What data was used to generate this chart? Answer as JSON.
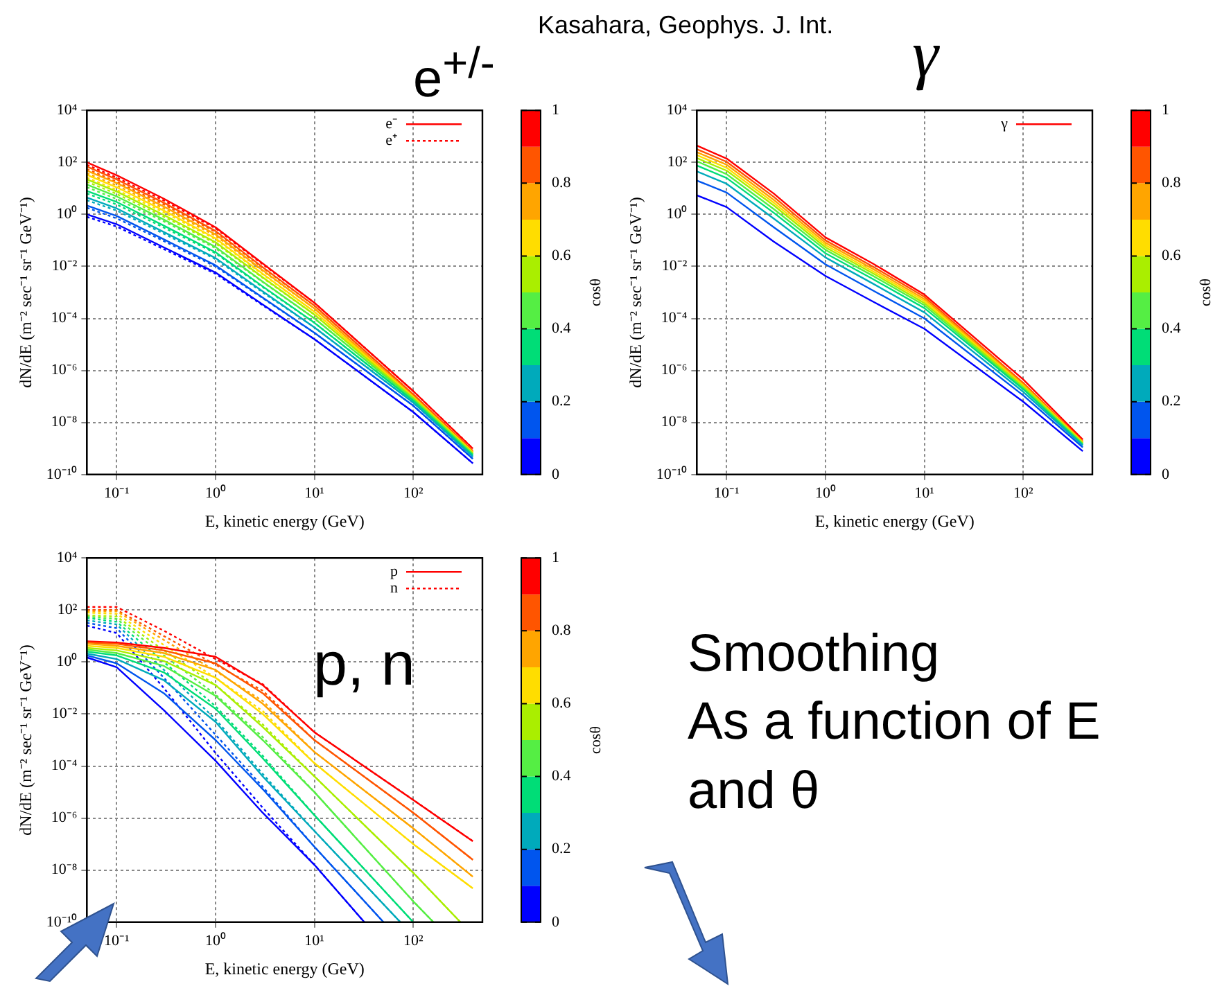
{
  "chart_data": [
    {
      "type": "line",
      "title": "e$^{+/-}$",
      "xlabel": "E, kinetic energy (GeV)",
      "ylabel": "dN/dE (m⁻² sec⁻¹ sr⁻¹ GeV⁻¹)",
      "clabel": "cosθ",
      "clim": [
        0,
        1
      ],
      "cticks": [
        0,
        0.2,
        0.4,
        0.6,
        0.8,
        1
      ],
      "log": "xy",
      "grid": true,
      "legend": "top right",
      "marker": "none",
      "xlim": [
        0.05,
        500
      ],
      "ylim": [
        1e-10,
        10000
      ],
      "xticks": [
        {
          "value": 0.1,
          "label": "10⁻¹"
        },
        {
          "value": 1,
          "label": "10⁰"
        },
        {
          "value": 10,
          "label": "10¹"
        },
        {
          "value": 100,
          "label": "10²"
        }
      ],
      "yticks": [
        {
          "value": 1e-10,
          "label": "10⁻¹⁰"
        },
        {
          "value": 1e-08,
          "label": "10⁻⁸"
        },
        {
          "value": 1e-06,
          "label": "10⁻⁶"
        },
        {
          "value": 0.0001,
          "label": "10⁻⁴"
        },
        {
          "value": 0.01,
          "label": "10⁻²"
        },
        {
          "value": 1,
          "label": "10⁰"
        },
        {
          "value": 100,
          "label": "10²"
        },
        {
          "value": 10000,
          "label": "10⁴"
        }
      ],
      "x": [
        0.05,
        0.1,
        0.3,
        1,
        3,
        10,
        100,
        400
      ],
      "series": [
        {
          "color": "#0000ff",
          "line_style": "solid",
          "values": [
            1,
            0.42,
            0.054,
            0.0058,
            0.00034,
            1.6e-05,
            2.5e-08,
            2.7e-10
          ]
        },
        {
          "color": "#0055ee",
          "line_style": "solid",
          "values": [
            2.2,
            0.87,
            0.11,
            0.011,
            0.00063,
            2.8e-05,
            4.4e-08,
            4e-10
          ]
        },
        {
          "color": "#00aabb",
          "line_style": "solid",
          "values": [
            4.4,
            1.7,
            0.21,
            0.021,
            0.0011,
            4.5e-05,
            5.8e-08,
            4.9e-10
          ]
        },
        {
          "color": "#00dd77",
          "line_style": "solid",
          "values": [
            7.9,
            3,
            0.37,
            0.035,
            0.0017,
            6.8e-05,
            6.9e-08,
            5.5e-10
          ]
        },
        {
          "color": "#55ee44",
          "line_style": "solid",
          "values": [
            14,
            4.9,
            0.63,
            0.056,
            0.0026,
            0.0001,
            7.9e-08,
            6e-10
          ]
        },
        {
          "color": "#aaee00",
          "line_style": "solid",
          "values": [
            22,
            7.6,
            0.95,
            0.085,
            0.0038,
            0.00014,
            8.7e-08,
            6.6e-10
          ]
        },
        {
          "color": "#ffdd00",
          "line_style": "solid",
          "values": [
            33,
            11,
            1.4,
            0.12,
            0.0052,
            0.00018,
            9.5e-08,
            7.1e-10
          ]
        },
        {
          "color": "#ffa500",
          "line_style": "solid",
          "values": [
            48,
            16,
            2,
            0.17,
            0.0071,
            0.00024,
            1e-07,
            7.4e-10
          ]
        },
        {
          "color": "#ff5500",
          "line_style": "solid",
          "values": [
            69,
            22,
            2.8,
            0.23,
            0.0093,
            0.00031,
            1.2e-07,
            8.1e-10
          ]
        },
        {
          "name": "e⁻",
          "color": "#ff0000",
          "line_style": "solid",
          "values": [
            100,
            32,
            4,
            0.32,
            0.013,
            0.0004,
            1.6e-07,
            1e-09
          ]
        },
        {
          "color": "#0000ff",
          "line_style": "dotted",
          "values": [
            0.8,
            0.34,
            0.046,
            0.0052,
            0.00032,
            1.6e-05,
            2.5e-08,
            2.7e-10
          ]
        },
        {
          "color": "#0055ee",
          "line_style": "dotted",
          "values": [
            1.8,
            0.7,
            0.094,
            0.0099,
            0.0006,
            2.8e-05,
            4.4e-08,
            4e-10
          ]
        },
        {
          "color": "#00aabb",
          "line_style": "dotted",
          "values": [
            3.5,
            1.4,
            0.18,
            0.019,
            0.001,
            4.5e-05,
            5.8e-08,
            4.9e-10
          ]
        },
        {
          "color": "#00dd77",
          "line_style": "dotted",
          "values": [
            6.3,
            2.4,
            0.31,
            0.032,
            0.0016,
            6.8e-05,
            6.9e-08,
            5.5e-10
          ]
        },
        {
          "color": "#55ee44",
          "line_style": "dotted",
          "values": [
            11,
            3.9,
            0.54,
            0.05,
            0.0025,
            0.0001,
            7.9e-08,
            6e-10
          ]
        },
        {
          "color": "#aaee00",
          "line_style": "dotted",
          "values": [
            18,
            6.1,
            0.81,
            0.077,
            0.0036,
            0.00014,
            8.7e-08,
            6.6e-10
          ]
        },
        {
          "color": "#ffdd00",
          "line_style": "dotted",
          "values": [
            26,
            8.8,
            1.2,
            0.11,
            0.0049,
            0.00018,
            9.5e-08,
            7.1e-10
          ]
        },
        {
          "color": "#ffa500",
          "line_style": "dotted",
          "values": [
            38,
            13,
            1.7,
            0.15,
            0.0067,
            0.00024,
            1e-07,
            7.4e-10
          ]
        },
        {
          "color": "#ff5500",
          "line_style": "dotted",
          "values": [
            55,
            18,
            2.4,
            0.21,
            0.0088,
            0.00031,
            1.2e-07,
            8.1e-10
          ]
        },
        {
          "name": "e⁺",
          "color": "#ff0000",
          "line_style": "dotted",
          "values": [
            80,
            26,
            3.4,
            0.29,
            0.012,
            0.0004,
            1.6e-07,
            1e-09
          ]
        }
      ]
    },
    {
      "type": "line",
      "title": "γ",
      "xlabel": "E, kinetic energy (GeV)",
      "ylabel": "dN/dE (m⁻² sec⁻¹ sr⁻¹ GeV⁻¹)",
      "clabel": "cosθ",
      "clim": [
        0,
        1
      ],
      "cticks": [
        0,
        0.2,
        0.4,
        0.6,
        0.8,
        1
      ],
      "log": "xy",
      "grid": true,
      "legend": "top right",
      "marker": "none",
      "xlim": [
        0.05,
        500
      ],
      "ylim": [
        1e-10,
        10000
      ],
      "xticks": [
        {
          "value": 0.1,
          "label": "10⁻¹"
        },
        {
          "value": 1,
          "label": "10⁰"
        },
        {
          "value": 10,
          "label": "10¹"
        },
        {
          "value": 100,
          "label": "10²"
        }
      ],
      "yticks": [
        {
          "value": 1e-10,
          "label": "10⁻¹⁰"
        },
        {
          "value": 1e-08,
          "label": "10⁻⁸"
        },
        {
          "value": 1e-06,
          "label": "10⁻⁶"
        },
        {
          "value": 0.0001,
          "label": "10⁻⁴"
        },
        {
          "value": 0.01,
          "label": "10⁻²"
        },
        {
          "value": 1,
          "label": "10⁰"
        },
        {
          "value": 100,
          "label": "10²"
        },
        {
          "value": 10000,
          "label": "10⁴"
        }
      ],
      "x": [
        0.05,
        0.1,
        0.3,
        1,
        3,
        10,
        100,
        400
      ],
      "series": [
        {
          "color": "#0000ff",
          "line_style": "solid",
          "values": [
            5.4,
            1.9,
            0.089,
            0.0043,
            0.00045,
            4e-05,
            6.3e-08,
            7.9e-10
          ]
        },
        {
          "color": "#0055ee",
          "line_style": "solid",
          "values": [
            20,
            6.9,
            0.32,
            0.012,
            0.0012,
            0.0001,
            1.1e-07,
            1.1e-09
          ]
        },
        {
          "color": "#00aabb",
          "line_style": "solid",
          "values": [
            45,
            15,
            0.69,
            0.022,
            0.0022,
            0.00017,
            1.5e-07,
            1.3e-09
          ]
        },
        {
          "color": "#00dd77",
          "line_style": "solid",
          "values": [
            76,
            25,
            1.15,
            0.032,
            0.0033,
            0.00025,
            1.9e-07,
            1.4e-09
          ]
        },
        {
          "color": "#55ee44",
          "line_style": "solid",
          "values": [
            110,
            35,
            1.6,
            0.043,
            0.0044,
            0.00032,
            2.1e-07,
            1.5e-09
          ]
        },
        {
          "color": "#aaee00",
          "line_style": "solid",
          "values": [
            145,
            48,
            2.2,
            0.054,
            0.0055,
            0.00039,
            2.4e-07,
            1.6e-09
          ]
        },
        {
          "color": "#ffdd00",
          "line_style": "solid",
          "values": [
            190,
            62,
            2.8,
            0.066,
            0.0066,
            0.00047,
            2.6e-07,
            1.7e-09
          ]
        },
        {
          "color": "#ffa500",
          "line_style": "solid",
          "values": [
            245,
            81,
            3.6,
            0.081,
            0.0081,
            0.00056,
            2.9e-07,
            1.8e-09
          ]
        },
        {
          "color": "#ff5500",
          "line_style": "solid",
          "values": [
            320,
            105,
            4.7,
            0.1,
            0.01,
            0.00068,
            3.3e-07,
            1.9e-09
          ]
        },
        {
          "name": "γ",
          "color": "#ff0000",
          "line_style": "solid",
          "values": [
            440,
            140,
            6.3,
            0.13,
            0.013,
            0.00083,
            4.5e-07,
            2.2e-09
          ]
        }
      ]
    },
    {
      "type": "line",
      "title": "p, n",
      "xlabel": "E, kinetic energy (GeV)",
      "ylabel": "dN/dE (m⁻² sec⁻¹ sr⁻¹ GeV⁻¹)",
      "clabel": "cosθ",
      "clim": [
        0,
        1
      ],
      "cticks": [
        0,
        0.2,
        0.4,
        0.6,
        0.8,
        1
      ],
      "log": "xy",
      "grid": true,
      "legend": "top right",
      "marker": "none",
      "xlim": [
        0.05,
        500
      ],
      "ylim": [
        1e-10,
        10000
      ],
      "xticks": [
        {
          "value": 0.1,
          "label": "10⁻¹"
        },
        {
          "value": 1,
          "label": "10⁰"
        },
        {
          "value": 10,
          "label": "10¹"
        },
        {
          "value": 100,
          "label": "10²"
        }
      ],
      "yticks": [
        {
          "value": 1e-10,
          "label": "10⁻¹⁰"
        },
        {
          "value": 1e-08,
          "label": "10⁻⁸"
        },
        {
          "value": 1e-06,
          "label": "10⁻⁶"
        },
        {
          "value": 0.0001,
          "label": "10⁻⁴"
        },
        {
          "value": 0.01,
          "label": "10⁻²"
        },
        {
          "value": 1,
          "label": "10⁰"
        },
        {
          "value": 100,
          "label": "10²"
        },
        {
          "value": 10000,
          "label": "10⁴"
        }
      ],
      "x": [
        0.05,
        0.1,
        0.3,
        1,
        3,
        10,
        100,
        400
      ],
      "series": [
        {
          "color": "#0000ff",
          "line_style": "solid",
          "x": [
            0.05,
            0.1,
            0.3,
            1,
            3,
            10,
            32
          ],
          "values": [
            1.5,
            0.63,
            0.014,
            0.00016,
            1.6e-06,
            1.6e-08,
            1e-10
          ]
        },
        {
          "color": "#0055ee",
          "line_style": "solid",
          "x": [
            0.05,
            0.1,
            0.3,
            1,
            3,
            10,
            50
          ],
          "values": [
            1.8,
            0.89,
            0.063,
            0.001,
            1.3e-05,
            7.9e-08,
            1e-10
          ]
        },
        {
          "color": "#00aabb",
          "line_style": "solid",
          "x": [
            0.05,
            0.1,
            0.3,
            1,
            3,
            10,
            74
          ],
          "values": [
            2.1,
            1.3,
            0.2,
            0.005,
            4e-05,
            3.2e-07,
            1e-10
          ]
        },
        {
          "color": "#00dd77",
          "line_style": "solid",
          "x": [
            0.05,
            0.1,
            0.3,
            1,
            3,
            10,
            100
          ],
          "values": [
            2.5,
            1.8,
            0.4,
            0.016,
            0.0002,
            1.3e-06,
            1e-10
          ]
        },
        {
          "color": "#55ee44",
          "line_style": "solid",
          "x": [
            0.05,
            0.1,
            0.3,
            1,
            3,
            10,
            100,
            160
          ],
          "values": [
            3,
            2.2,
            0.71,
            0.05,
            0.001,
            1e-05,
            6.3e-10,
            1e-10
          ]
        },
        {
          "color": "#aaee00",
          "line_style": "solid",
          "x": [
            0.05,
            0.1,
            0.3,
            1,
            3,
            10,
            100,
            300
          ],
          "values": [
            3.5,
            2.8,
            1.1,
            0.13,
            0.0032,
            4e-05,
            7.9e-09,
            1e-10
          ]
        },
        {
          "color": "#ffdd00",
          "line_style": "solid",
          "values": [
            4.2,
            3.5,
            1.6,
            0.25,
            0.01,
            0.00013,
            1e-07,
            2e-09
          ]
        },
        {
          "color": "#ffa500",
          "line_style": "solid",
          "values": [
            5,
            4.2,
            2.2,
            0.5,
            0.025,
            0.00035,
            4e-07,
            5.6e-09
          ]
        },
        {
          "color": "#ff5500",
          "line_style": "solid",
          "values": [
            5.6,
            5,
            2.8,
            0.89,
            0.063,
            0.001,
            1.6e-06,
            2.5e-08
          ]
        },
        {
          "name": "p",
          "color": "#ff0000",
          "line_style": "solid",
          "values": [
            6.3,
            5.6,
            3.5,
            1.6,
            0.13,
            0.002,
            5e-06,
            1.3e-07
          ]
        },
        {
          "color": "#0000ff",
          "line_style": "dotted",
          "x": [
            0.05,
            0.1,
            0.3,
            1,
            3,
            10,
            32
          ],
          "values": [
            25,
            13,
            0.1,
            0.00032,
            2.5e-06,
            1.6e-08,
            1e-10
          ]
        },
        {
          "color": "#0055ee",
          "line_style": "dotted",
          "x": [
            0.05,
            0.1,
            0.3,
            1,
            3,
            10,
            50
          ],
          "values": [
            32,
            20,
            0.25,
            0.0016,
            1.6e-05,
            7.9e-08,
            1e-10
          ]
        },
        {
          "color": "#00aabb",
          "line_style": "dotted",
          "x": [
            0.05,
            0.1,
            0.3,
            1,
            3,
            10,
            74
          ],
          "values": [
            40,
            28,
            0.5,
            0.0063,
            5e-05,
            3.2e-07,
            1e-10
          ]
        },
        {
          "color": "#00dd77",
          "line_style": "dotted",
          "x": [
            0.05,
            0.1,
            0.3,
            1,
            3,
            10,
            100
          ],
          "values": [
            50,
            35,
            1,
            0.02,
            0.00025,
            1.3e-06,
            1e-10
          ]
        },
        {
          "color": "#55ee44",
          "line_style": "dotted",
          "x": [
            0.05,
            0.1,
            0.3,
            1,
            3,
            10,
            100,
            160
          ],
          "values": [
            56,
            45,
            1.8,
            0.056,
            0.0013,
            1e-05,
            6.3e-10,
            1e-10
          ]
        },
        {
          "color": "#aaee00",
          "line_style": "dotted",
          "x": [
            0.05,
            0.1,
            0.3,
            1,
            3,
            10,
            100,
            300
          ],
          "values": [
            63,
            56,
            2.8,
            0.13,
            0.004,
            4e-05,
            7.9e-09,
            1e-10
          ]
        },
        {
          "color": "#ffdd00",
          "line_style": "dotted",
          "values": [
            79,
            71,
            4.5,
            0.25,
            0.013,
            0.00013,
            1e-07,
            2e-09
          ]
        },
        {
          "color": "#ffa500",
          "line_style": "dotted",
          "values": [
            89,
            89,
            7.1,
            0.45,
            0.032,
            0.00035,
            4e-07,
            5.6e-09
          ]
        },
        {
          "color": "#ff5500",
          "line_style": "dotted",
          "values": [
            100,
            100,
            10,
            0.79,
            0.079,
            0.001,
            1.6e-06,
            2.5e-08
          ]
        },
        {
          "name": "n",
          "color": "#ff0000",
          "line_style": "dotted",
          "values": [
            130,
            130,
            16,
            1.3,
            0.14,
            0.002,
            5e-06,
            1.3e-07
          ]
        }
      ]
    },
    {
      "type": "other",
      "title": "Smoothing",
      "subtitle": "As a function of E and θ",
      "annotations": [
        "Kasahara, Geophys. J. Int."
      ]
    }
  ]
}
